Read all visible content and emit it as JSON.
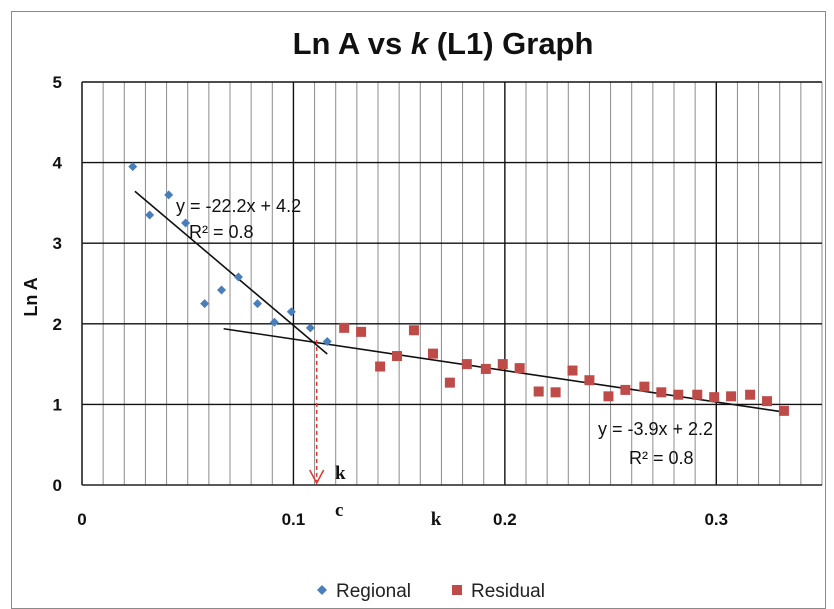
{
  "chart_data": {
    "type": "scatter",
    "title_parts": [
      "Ln A vs ",
      "k",
      " (L1) Graph"
    ],
    "ylabel": "Ln A",
    "xlabel": "",
    "xlim": [
      0,
      0.35
    ],
    "ylim": [
      0,
      5
    ],
    "x_ticks": [
      {
        "value": 0,
        "label": "0"
      },
      {
        "value": 0.1,
        "label": "0.1"
      },
      {
        "value": 0.2,
        "label": "0.2"
      },
      {
        "value": 0.3,
        "label": "0.3"
      }
    ],
    "y_ticks": [
      {
        "value": 0,
        "label": "0"
      },
      {
        "value": 1,
        "label": "1"
      },
      {
        "value": 2,
        "label": "2"
      },
      {
        "value": 3,
        "label": "3"
      },
      {
        "value": 4,
        "label": "4"
      },
      {
        "value": 5,
        "label": "5"
      }
    ],
    "grid": {
      "minor_x_step": 0.01,
      "major_x_step": 0.1,
      "y_step": 1
    },
    "series": [
      {
        "name": "Regional",
        "color": "#4a7ebb",
        "marker": "diamond",
        "points": [
          [
            0.024,
            3.95
          ],
          [
            0.032,
            3.35
          ],
          [
            0.041,
            3.6
          ],
          [
            0.049,
            3.25
          ],
          [
            0.058,
            2.25
          ],
          [
            0.066,
            2.42
          ],
          [
            0.074,
            2.58
          ],
          [
            0.083,
            2.25
          ],
          [
            0.091,
            2.02
          ],
          [
            0.099,
            2.15
          ],
          [
            0.108,
            1.95
          ],
          [
            0.116,
            1.78
          ]
        ],
        "trendline": {
          "x_range": [
            0.025,
            0.116
          ],
          "slope": -22.2,
          "intercept": 4.2,
          "equation": "y = -22.2x + 4.2",
          "r2": "R² = 0.8"
        }
      },
      {
        "name": "Residual",
        "color": "#be4b48",
        "marker": "square",
        "points": [
          [
            0.124,
            1.95
          ],
          [
            0.132,
            1.9
          ],
          [
            0.141,
            1.47
          ],
          [
            0.149,
            1.6
          ],
          [
            0.157,
            1.92
          ],
          [
            0.166,
            1.63
          ],
          [
            0.174,
            1.27
          ],
          [
            0.182,
            1.5
          ],
          [
            0.191,
            1.44
          ],
          [
            0.199,
            1.5
          ],
          [
            0.207,
            1.45
          ],
          [
            0.216,
            1.16
          ],
          [
            0.224,
            1.15
          ],
          [
            0.232,
            1.42
          ],
          [
            0.24,
            1.3
          ],
          [
            0.249,
            1.1
          ],
          [
            0.257,
            1.18
          ],
          [
            0.266,
            1.22
          ],
          [
            0.274,
            1.15
          ],
          [
            0.282,
            1.12
          ],
          [
            0.291,
            1.12
          ],
          [
            0.299,
            1.09
          ],
          [
            0.307,
            1.1
          ],
          [
            0.316,
            1.12
          ],
          [
            0.324,
            1.04
          ],
          [
            0.332,
            0.92
          ]
        ],
        "trendline": {
          "x_range": [
            0.067,
            0.332
          ],
          "slope": -3.9,
          "intercept": 2.2,
          "equation": "y = -3.9x + 2.2",
          "r2": "R² = 0.8"
        }
      }
    ],
    "annotations": {
      "kc_x": 0.111,
      "kc_color": "#e8322c",
      "k_label": "k",
      "c_label": "c",
      "axis_k_label": "k"
    },
    "legend": {
      "placement": "bottom-center",
      "items": [
        "Regional",
        "Residual"
      ]
    }
  }
}
